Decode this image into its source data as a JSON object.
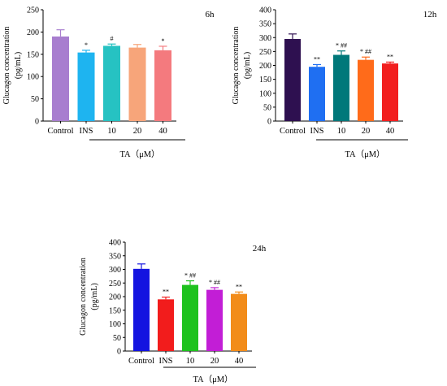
{
  "chart_data": [
    {
      "type": "bar",
      "time_label": "6h",
      "ylabel": "Glucagon concentration",
      "ylabel_unit": "(pg/mL)",
      "group_label": "TA（μM）",
      "categories": [
        "Control",
        "INS",
        "10",
        "20",
        "40"
      ],
      "values": [
        190,
        154,
        169,
        165,
        159
      ],
      "errors": [
        15,
        5,
        4,
        7,
        9
      ],
      "annotations": [
        "",
        "*",
        "#",
        "",
        "*"
      ],
      "colors": [
        "#A87ECF",
        "#1EB4F0",
        "#26C2C2",
        "#F7A57A",
        "#F47A7E"
      ],
      "ylim": [
        0,
        250
      ],
      "yticks": [
        0,
        50,
        100,
        150,
        200,
        250
      ],
      "grid": false,
      "legend": "none"
    },
    {
      "type": "bar",
      "time_label": "12h",
      "ylabel": "Glucagon concentration",
      "ylabel_unit": "(pg/mL)",
      "group_label": "TA（μM）",
      "categories": [
        "Control",
        "INS",
        "10",
        "20",
        "40"
      ],
      "values": [
        295,
        195,
        238,
        220,
        207
      ],
      "errors": [
        18,
        8,
        14,
        10,
        5
      ],
      "annotations": [
        "",
        "**",
        "* ##",
        "* ##",
        "**"
      ],
      "colors": [
        "#2E1050",
        "#1F6FF2",
        "#00787A",
        "#FF6B1A",
        "#F21F1F"
      ],
      "ylim": [
        0,
        400
      ],
      "yticks": [
        0,
        50,
        100,
        150,
        200,
        250,
        300,
        350,
        400
      ],
      "grid": false,
      "legend": "none"
    },
    {
      "type": "bar",
      "time_label": "24h",
      "ylabel": "Glucagon concentration",
      "ylabel_unit": "(pg/mL)",
      "group_label": "TA（μM）",
      "categories": [
        "Control",
        "INS",
        "10",
        "20",
        "40"
      ],
      "values": [
        302,
        190,
        243,
        225,
        210
      ],
      "errors": [
        18,
        8,
        15,
        8,
        7
      ],
      "annotations": [
        "",
        "**",
        "* ##",
        "* ##",
        "**"
      ],
      "colors": [
        "#1414E0",
        "#F21C1C",
        "#1EC21E",
        "#C21ED6",
        "#F28C1A"
      ],
      "ylim": [
        0,
        400
      ],
      "yticks": [
        0,
        50,
        100,
        150,
        200,
        250,
        300,
        350,
        400
      ],
      "grid": false,
      "legend": "none"
    }
  ]
}
